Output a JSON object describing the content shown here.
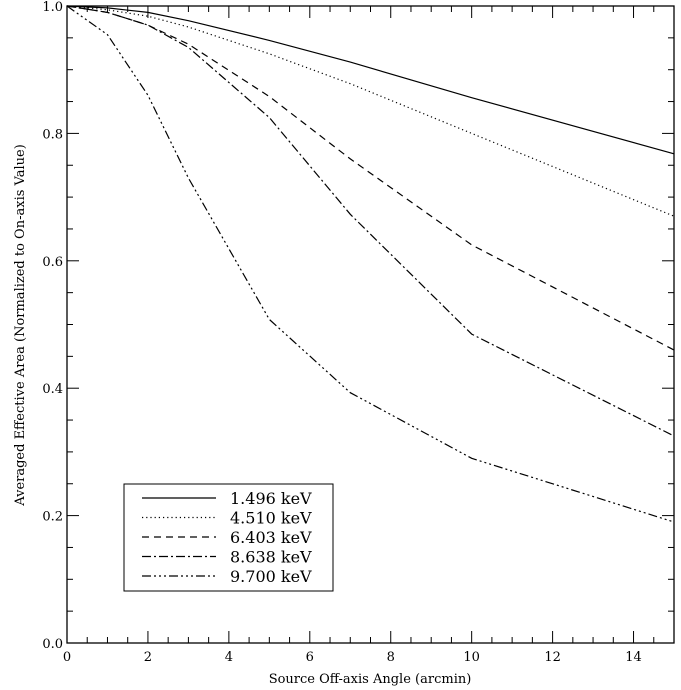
{
  "chart_data": {
    "type": "line",
    "title": "",
    "xlabel": "Source Off-axis Angle (arcmin)",
    "ylabel": "Averaged Effective Area (Normalized to On-axis Value)",
    "xlim": [
      0,
      15
    ],
    "ylim": [
      0.0,
      1.0
    ],
    "xticks": [
      0,
      2,
      4,
      6,
      8,
      10,
      12,
      14
    ],
    "xtick_labels": [
      "0",
      "2",
      "4",
      "6",
      "8",
      "10",
      "12",
      "14"
    ],
    "yticks": [
      0.0,
      0.2,
      0.4,
      0.6,
      0.8,
      1.0
    ],
    "ytick_labels": [
      "0.0",
      "0.2",
      "0.4",
      "0.6",
      "0.8",
      "1.0"
    ],
    "grid": false,
    "legend_position": "bottom-left",
    "series": [
      {
        "name": "1.496 keV",
        "style": "solid",
        "x": [
          0,
          1,
          2,
          3,
          5,
          7,
          10,
          15
        ],
        "y": [
          1.0,
          0.997,
          0.99,
          0.977,
          0.946,
          0.912,
          0.856,
          0.768
        ]
      },
      {
        "name": "4.510 keV",
        "style": "dotted",
        "x": [
          0,
          1,
          2,
          3,
          5,
          7,
          10,
          15
        ],
        "y": [
          1.0,
          0.994,
          0.984,
          0.967,
          0.925,
          0.878,
          0.8,
          0.67
        ]
      },
      {
        "name": "6.403 keV",
        "style": "dashed",
        "x": [
          0,
          1,
          2,
          3,
          5,
          7,
          10,
          15
        ],
        "y": [
          1.0,
          0.99,
          0.97,
          0.94,
          0.858,
          0.76,
          0.625,
          0.46
        ]
      },
      {
        "name": "8.638 keV",
        "style": "dash-dot",
        "x": [
          0,
          1,
          2,
          3,
          5,
          7,
          10,
          15
        ],
        "y": [
          1.0,
          0.99,
          0.97,
          0.935,
          0.825,
          0.673,
          0.485,
          0.325
        ]
      },
      {
        "name": "9.700 keV",
        "style": "dash-dot-dot-dot",
        "x": [
          0,
          1,
          2,
          3,
          5,
          7,
          10,
          15
        ],
        "y": [
          1.0,
          0.955,
          0.86,
          0.73,
          0.508,
          0.393,
          0.29,
          0.19
        ]
      }
    ]
  }
}
